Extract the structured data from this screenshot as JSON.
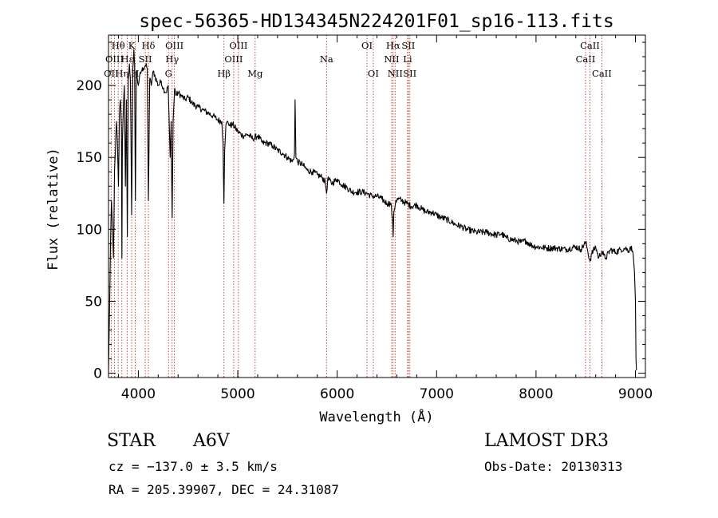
{
  "chart_data": {
    "type": "line",
    "title": "spec-56365-HD134345N224201F01_sp16-113.fits",
    "xlabel": "Wavelength (Å)",
    "ylabel": "Flux (relative)",
    "xlim": [
      3700,
      9100
    ],
    "ylim": [
      -3,
      235
    ],
    "xticks": [
      4000,
      5000,
      6000,
      7000,
      8000,
      9000
    ],
    "yticks": [
      0,
      50,
      100,
      150,
      200
    ],
    "grid": false,
    "legend": "none",
    "series": [
      {
        "name": "spectrum",
        "x": [
          3700,
          3710,
          3720,
          3730,
          3740,
          3750,
          3760,
          3770,
          3780,
          3790,
          3800,
          3810,
          3820,
          3830,
          3835,
          3840,
          3850,
          3860,
          3870,
          3880,
          3889,
          3900,
          3910,
          3920,
          3933,
          3945,
          3955,
          3962,
          3970,
          3980,
          3990,
          4000,
          4010,
          4030,
          4050,
          4070,
          4090,
          4101,
          4115,
          4130,
          4150,
          4170,
          4200,
          4230,
          4250,
          4280,
          4300,
          4320,
          4330,
          4340,
          4350,
          4365,
          4380,
          4400,
          4430,
          4470,
          4500,
          4550,
          4600,
          4650,
          4700,
          4750,
          4800,
          4840,
          4852,
          4861,
          4868,
          4880,
          4900,
          4920,
          4950,
          5000,
          5050,
          5100,
          5150,
          5200,
          5250,
          5300,
          5350,
          5400,
          5450,
          5500,
          5550,
          5570,
          5577,
          5585,
          5600,
          5650,
          5700,
          5750,
          5800,
          5850,
          5880,
          5893,
          5905,
          5950,
          6000,
          6050,
          6100,
          6150,
          6200,
          6250,
          6300,
          6350,
          6400,
          6450,
          6500,
          6540,
          6555,
          6563,
          6570,
          6590,
          6620,
          6650,
          6700,
          6750,
          6800,
          6850,
          6900,
          6950,
          7000,
          7050,
          7100,
          7150,
          7200,
          7250,
          7300,
          7400,
          7500,
          7600,
          7650,
          7700,
          7750,
          7800,
          7850,
          7900,
          7950,
          8000,
          8100,
          8200,
          8300,
          8400,
          8450,
          8500,
          8520,
          8542,
          8560,
          8600,
          8630,
          8662,
          8680,
          8700,
          8750,
          8800,
          8850,
          8900,
          8930,
          8950,
          8970,
          8980,
          8990,
          9000,
          9005,
          9010
        ],
        "y": [
          2,
          40,
          90,
          120,
          100,
          80,
          140,
          155,
          175,
          160,
          130,
          180,
          190,
          170,
          80,
          160,
          185,
          200,
          130,
          190,
          95,
          205,
          215,
          205,
          110,
          212,
          225,
          215,
          120,
          210,
          205,
          200,
          205,
          210,
          212,
          214,
          212,
          120,
          205,
          200,
          210,
          206,
          200,
          203,
          198,
          195,
          200,
          150,
          175,
          108,
          175,
          198,
          193,
          195,
          193,
          190,
          192,
          187,
          185,
          183,
          181,
          179,
          176,
          175,
          160,
          118,
          155,
          172,
          175,
          172,
          173,
          168,
          165,
          166,
          163,
          165,
          160,
          160,
          158,
          155,
          153,
          150,
          147,
          152,
          190,
          150,
          147,
          145,
          141,
          140,
          138,
          136,
          133,
          125,
          135,
          132,
          135,
          131,
          129,
          126,
          126,
          126,
          125,
          123,
          123,
          121,
          118,
          118,
          108,
          95,
          112,
          120,
          121,
          120,
          118,
          116,
          117,
          114,
          112,
          112,
          110,
          108,
          107,
          105,
          103,
          102,
          100,
          98,
          98,
          96,
          97,
          94,
          93,
          92,
          91,
          92,
          89,
          88,
          87,
          87,
          86,
          88,
          86,
          91,
          85,
          78,
          83,
          88,
          80,
          85,
          82,
          80,
          86,
          84,
          86,
          87,
          85,
          88,
          85,
          80,
          70,
          50,
          10,
          2
        ]
      }
    ],
    "line_markers": [
      {
        "name": "OII",
        "wavelength": 3727,
        "row": 3
      },
      {
        "name": "Hθ",
        "wavelength": 3798,
        "row": 1
      },
      {
        "name": "OIII",
        "wavelength": 3760,
        "row": 2
      },
      {
        "name": "Hη",
        "wavelength": 3835,
        "row": 3
      },
      {
        "name": "Hε",
        "wavelength": 3889,
        "row": 2
      },
      {
        "name": "K",
        "wavelength": 3933,
        "row": 1
      },
      {
        "name": "H",
        "wavelength": 3968,
        "row": 3
      },
      {
        "name": "SII",
        "wavelength": 4070,
        "row": 2
      },
      {
        "name": "Hδ",
        "wavelength": 4101,
        "row": 1
      },
      {
        "name": "G",
        "wavelength": 4304,
        "row": 3
      },
      {
        "name": "Hγ",
        "wavelength": 4340,
        "row": 2
      },
      {
        "name": "OIII",
        "wavelength": 4363,
        "row": 1
      },
      {
        "name": "Hβ",
        "wavelength": 4861,
        "row": 3
      },
      {
        "name": "OIII",
        "wavelength": 4959,
        "row": 2
      },
      {
        "name": "OIII",
        "wavelength": 5007,
        "row": 1
      },
      {
        "name": "Mg",
        "wavelength": 5175,
        "row": 3
      },
      {
        "name": "Na",
        "wavelength": 5893,
        "row": 2
      },
      {
        "name": "OI",
        "wavelength": 6300,
        "row": 1
      },
      {
        "name": "OI",
        "wavelength": 6363,
        "row": 3
      },
      {
        "name": "NII",
        "wavelength": 6548,
        "row": 2
      },
      {
        "name": "Hα",
        "wavelength": 6563,
        "row": 1
      },
      {
        "name": "NII",
        "wavelength": 6583,
        "row": 3
      },
      {
        "name": "Li",
        "wavelength": 6708,
        "row": 2
      },
      {
        "name": "SII",
        "wavelength": 6716,
        "row": 1
      },
      {
        "name": "SII",
        "wavelength": 6731,
        "row": 3
      },
      {
        "name": "CaII",
        "wavelength": 8498,
        "row": 2
      },
      {
        "name": "CaII",
        "wavelength": 8542,
        "row": 1
      },
      {
        "name": "CaII",
        "wavelength": 8662,
        "row": 3
      }
    ]
  },
  "info": {
    "class_label": "STAR",
    "subclass": "A6V",
    "survey": "LAMOST DR3",
    "redshift": "cz = −137.0 ± 3.5 km/s",
    "obs_date": "Obs-Date: 20130313",
    "coords": "RA = 205.39907, DEC =  24.31087"
  }
}
